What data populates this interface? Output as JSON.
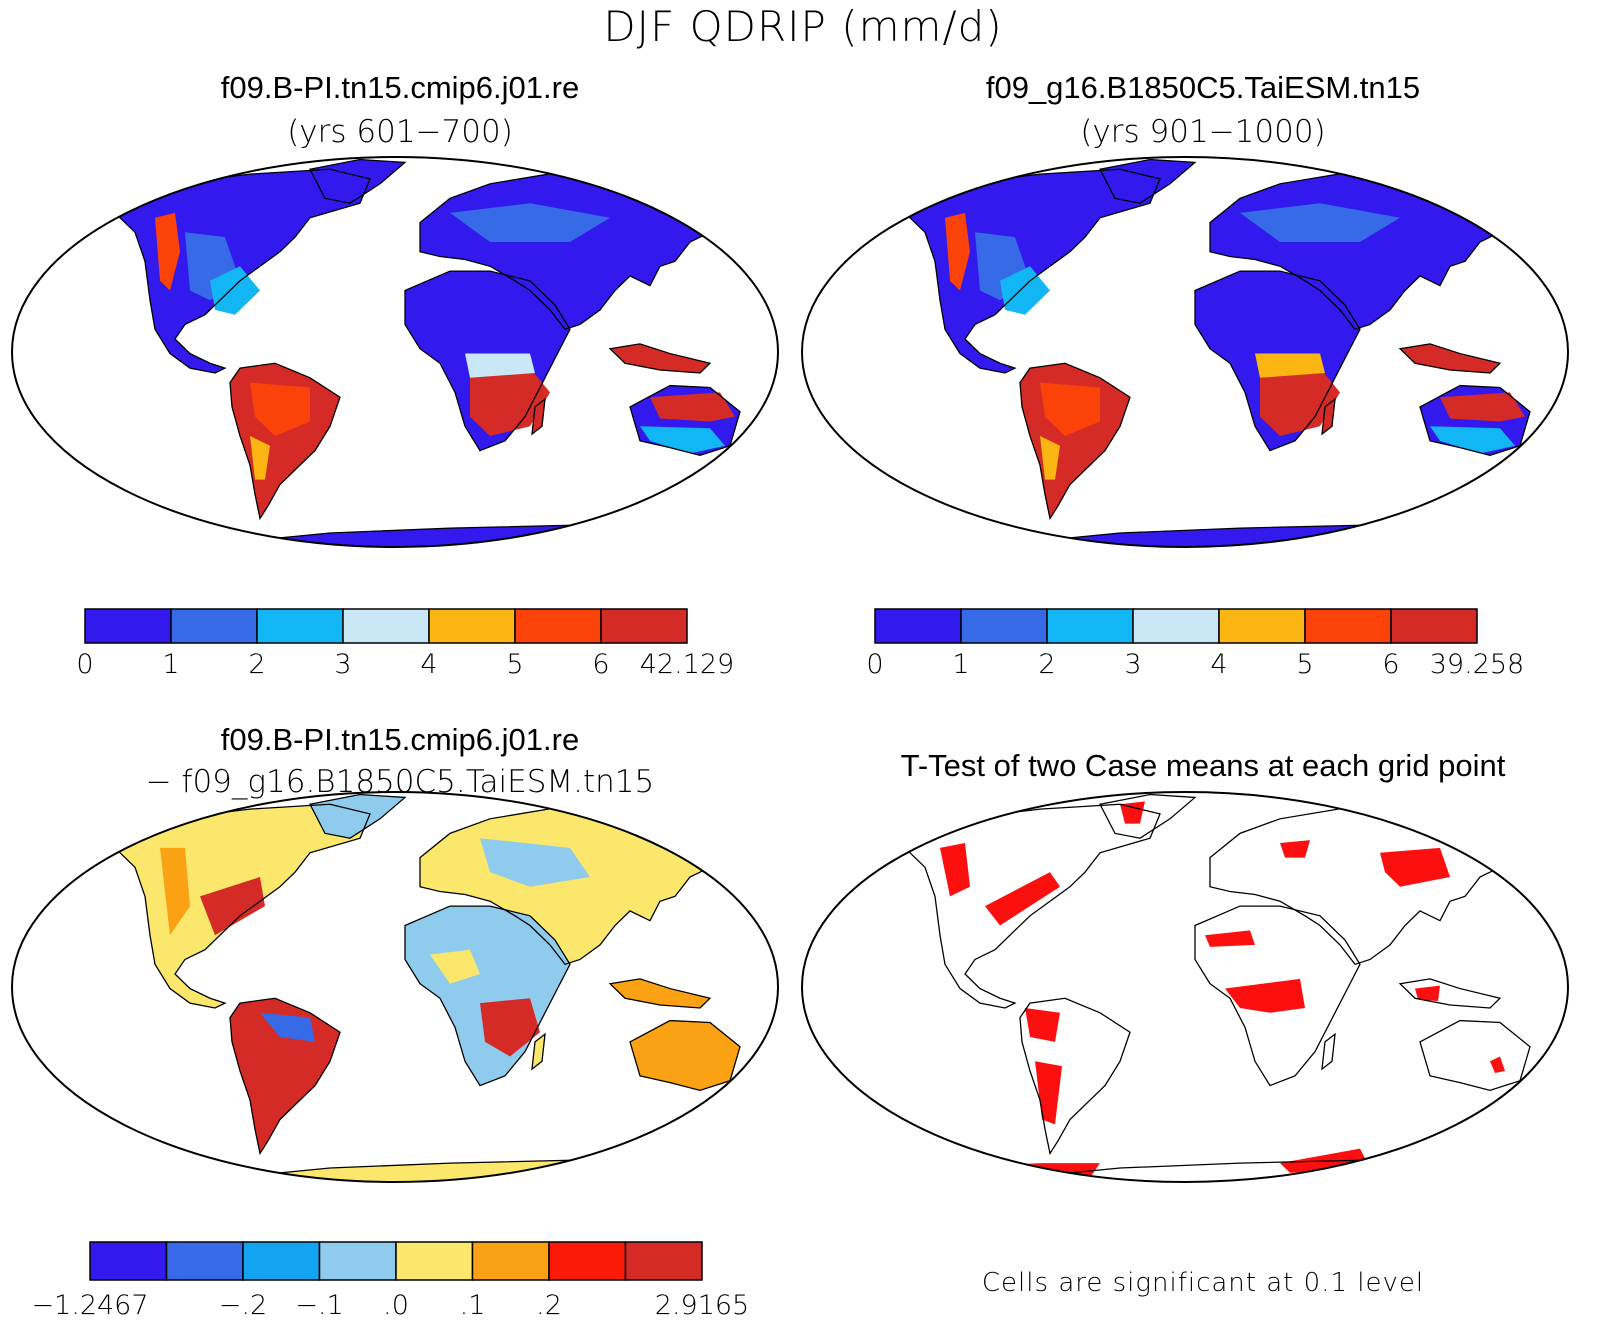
{
  "figure": {
    "title": "DJF QDRIP (mm/d)",
    "note": "Cells are significant at 0.1 level"
  },
  "panels": [
    {
      "id": "case1",
      "title": "f09.B-PI.tn15.cmip6.j01.re",
      "subtitle": "(yrs 601−700)"
    },
    {
      "id": "case2",
      "title": "f09_g16.B1850C5.TaiESM.tn15",
      "subtitle": "(yrs 901−1000)"
    },
    {
      "id": "diff",
      "title": "f09.B-PI.tn15.cmip6.j01.re",
      "subtitle": "− f09_g16.B1850C5.TaiESM.tn15"
    },
    {
      "id": "ttest",
      "title": "T-Test of two Case means at each grid point",
      "subtitle": ""
    }
  ],
  "colorbars": {
    "case1": {
      "labels": [
        "0",
        "1",
        "2",
        "3",
        "4",
        "5",
        "6",
        "42.129"
      ],
      "colors": [
        "#3219ee",
        "#376ae6",
        "#12b6f5",
        "#c9e7f7",
        "#fbb614",
        "#fb4208",
        "#d52b27"
      ]
    },
    "case2": {
      "labels": [
        "0",
        "1",
        "2",
        "3",
        "4",
        "5",
        "6",
        "39.258"
      ],
      "colors": [
        "#3219ee",
        "#376ae6",
        "#12b6f5",
        "#c9e7f7",
        "#fbb614",
        "#fb4208",
        "#d52b27"
      ]
    },
    "diff": {
      "labels": [
        "−1.2467",
        "",
        "−.2",
        "−.1",
        ".0",
        ".1",
        ".2",
        "",
        "2.9165"
      ],
      "colors": [
        "#3219ee",
        "#376ae6",
        "#12a4f1",
        "#8fcbec",
        "#fbe76b",
        "#fba114",
        "#fb1a08",
        "#d52b27"
      ]
    }
  },
  "map_colors": {
    "ocean": "#ffffff",
    "significant": "#fb0f0f",
    "coast": "#000000"
  }
}
